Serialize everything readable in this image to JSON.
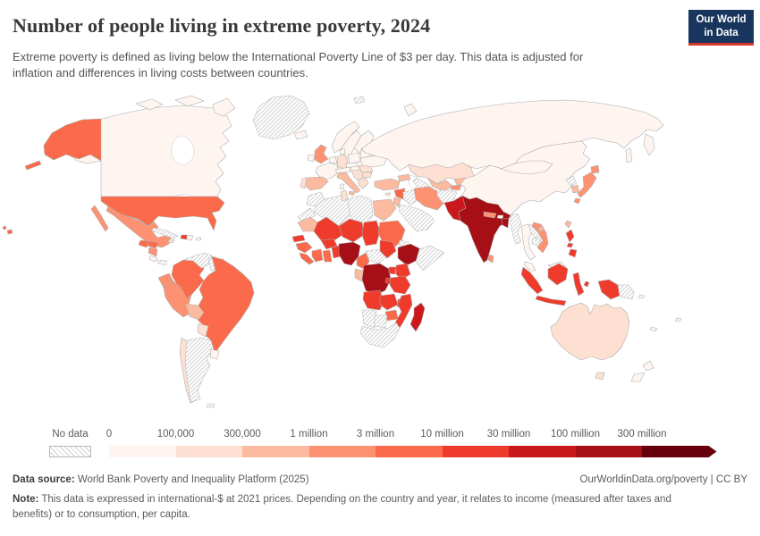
{
  "header": {
    "title": "Number of people living in extreme poverty, 2024",
    "subtitle": "Extreme poverty is defined as living below the International Poverty Line of $3 per day. This data is adjusted for inflation and differences in living costs between countries.",
    "logo": {
      "line1": "Our World",
      "line2": "in Data",
      "bg": "#18365d",
      "accent": "#d7382e"
    }
  },
  "legend": {
    "no_data_label": "No data",
    "tick_labels": [
      "0",
      "100,000",
      "300,000",
      "1 million",
      "3 million",
      "10 million",
      "30 million",
      "100 million",
      "300 million"
    ],
    "colors": [
      "#fff5f0",
      "#fee0d2",
      "#fcbba1",
      "#fc9272",
      "#fb6a4a",
      "#ef3b2c",
      "#cb181d",
      "#a50f15",
      "#67000d"
    ],
    "bar_start": 122,
    "band_width": 74.5
  },
  "footer": {
    "source_label": "Data source:",
    "source_value": " World Bank Poverty and Inequality Platform (2025)",
    "rights": "OurWorldinData.org/poverty | CC BY",
    "note_label": "Note:",
    "note_value": " This data is expressed in international-$ at 2021 prices. Depending on the country and year, it relates to income (measured after taxes and benefits) or to consumption, per capita."
  },
  "chart_data": {
    "type": "choropleth-map",
    "title": "Number of people living in extreme poverty, 2024",
    "unit": "people",
    "scale": "log-binned",
    "bins": [
      "0-100,000",
      "100,000-300,000",
      "300,000-1 million",
      "1-3 million",
      "3-10 million",
      "10-30 million",
      "30-100 million",
      "100-300 million",
      "300 million+"
    ],
    "bin_colors": [
      "#fff5f0",
      "#fee0d2",
      "#fcbba1",
      "#fc9272",
      "#fb6a4a",
      "#ef3b2c",
      "#cb181d",
      "#a50f15",
      "#67000d"
    ],
    "no_data_style": "gray diagonal hatching",
    "country_bands": {
      "canada": 0,
      "arctic-islands": 0,
      "greenland": "nd",
      "alaska": 4,
      "aleutians": 4,
      "united-states": 4,
      "hawaii": 4,
      "mexico": 3,
      "baja-california": 3,
      "guatemala": 4,
      "honduras": 4,
      "nicaragua": 3,
      "costa-rica": 0,
      "panama": "nd",
      "cuba": "nd",
      "jamaica": 1,
      "haiti": 5,
      "dominican-republic": 0,
      "puerto-rico": 0,
      "colombia": 4,
      "venezuela": "nd",
      "guyana": "nd",
      "suriname": 0,
      "ecuador": 3,
      "peru": 3,
      "brazil": 4,
      "bolivia": 2,
      "paraguay": 1,
      "chile": 1,
      "argentina": "nd",
      "uruguay": 0,
      "falkland-islands": "nd",
      "iceland": 0,
      "norway": 0,
      "sweden": 0,
      "finland": 0,
      "baltics": 0,
      "united-kingdom": 3,
      "ireland": 0,
      "france": 0,
      "spain": 2,
      "portugal": 1,
      "benelux": 0,
      "germany": 1,
      "denmark": 0,
      "poland": 0,
      "czechia-slovakia": 0,
      "austria-switzerland": 0,
      "italy": 2,
      "sicily": 2,
      "sardinia": 0,
      "hungary": 0,
      "balkans": 1,
      "greece": 1,
      "romania": 1,
      "bulgaria": 1,
      "ukraine": 0,
      "belarus": 0,
      "russia": 0,
      "kamchatka": 0,
      "sakhalin": 0,
      "novaya-zemlya": 0,
      "svalbard": "nd",
      "kazakhstan": 1,
      "uzbekistan": 2,
      "turkmenistan": "nd",
      "kyrgyzstan": 2,
      "tajikistan": 3,
      "caucasus": 2,
      "turkey": 2,
      "cyprus": 1,
      "syria": 4,
      "levant": 2,
      "iraq": "nd",
      "iran": 3,
      "arabian-peninsula": "nd",
      "afghanistan": "nd",
      "pakistan": 6,
      "india": 7,
      "nepal": 3,
      "bhutan": 0,
      "bangladesh": 7,
      "sri-lanka": 3,
      "myanmar": "nd",
      "thailand": 0,
      "laos": "nd",
      "cambodia": "nd",
      "vietnam": 3,
      "malaysia": 0,
      "malaysia-borneo": 0,
      "china": 0,
      "mongolia": 0,
      "hainan": 2,
      "north-korea": "nd",
      "south-korea": 2,
      "japan-honshu": 3,
      "japan-hokkaido": 3,
      "japan-kyushu": 3,
      "taiwan": 2,
      "philippines-luzon": 5,
      "philippines-visayas": 5,
      "philippines-mindanao": 5,
      "sumatra": 5,
      "java": 5,
      "kalimantan": 5,
      "sulawesi": 5,
      "lesser-sunda": 5,
      "moluccas": 5,
      "papua-indonesia": 5,
      "papua-new-guinea": "nd",
      "australia": 1,
      "tasmania": 1,
      "new-zealand-north": 0,
      "new-zealand-south": 0,
      "solomon-islands": 0,
      "fiji": 0,
      "new-caledonia": 0,
      "morocco": "nd",
      "western-sahara": "nd",
      "algeria": "nd",
      "tunisia": 1,
      "libya": "nd",
      "egypt": 2,
      "mauritania": 2,
      "mali": 5,
      "niger": 5,
      "chad": 5,
      "sudan": 4,
      "eritrea": "nd",
      "ethiopia": 7,
      "somalia": "nd",
      "senegal": 5,
      "guinea": 4,
      "sierra-leone-liberia": 4,
      "ivory-coast": 4,
      "ghana": 4,
      "burkina-faso": 5,
      "togo-benin": 5,
      "nigeria": 7,
      "cameroon": 4,
      "central-african-republic": "nd",
      "south-sudan": 5,
      "gabon-congo": 2,
      "dr-congo": 7,
      "uganda": 5,
      "kenya": 5,
      "rwanda-burundi": 5,
      "tanzania": 5,
      "angola": 5,
      "zambia": 5,
      "malawi": 5,
      "mozambique": 5,
      "zimbabwe": 4,
      "namibia": "nd",
      "botswana": "nd",
      "south-africa": "nd",
      "madagascar": 6
    }
  }
}
